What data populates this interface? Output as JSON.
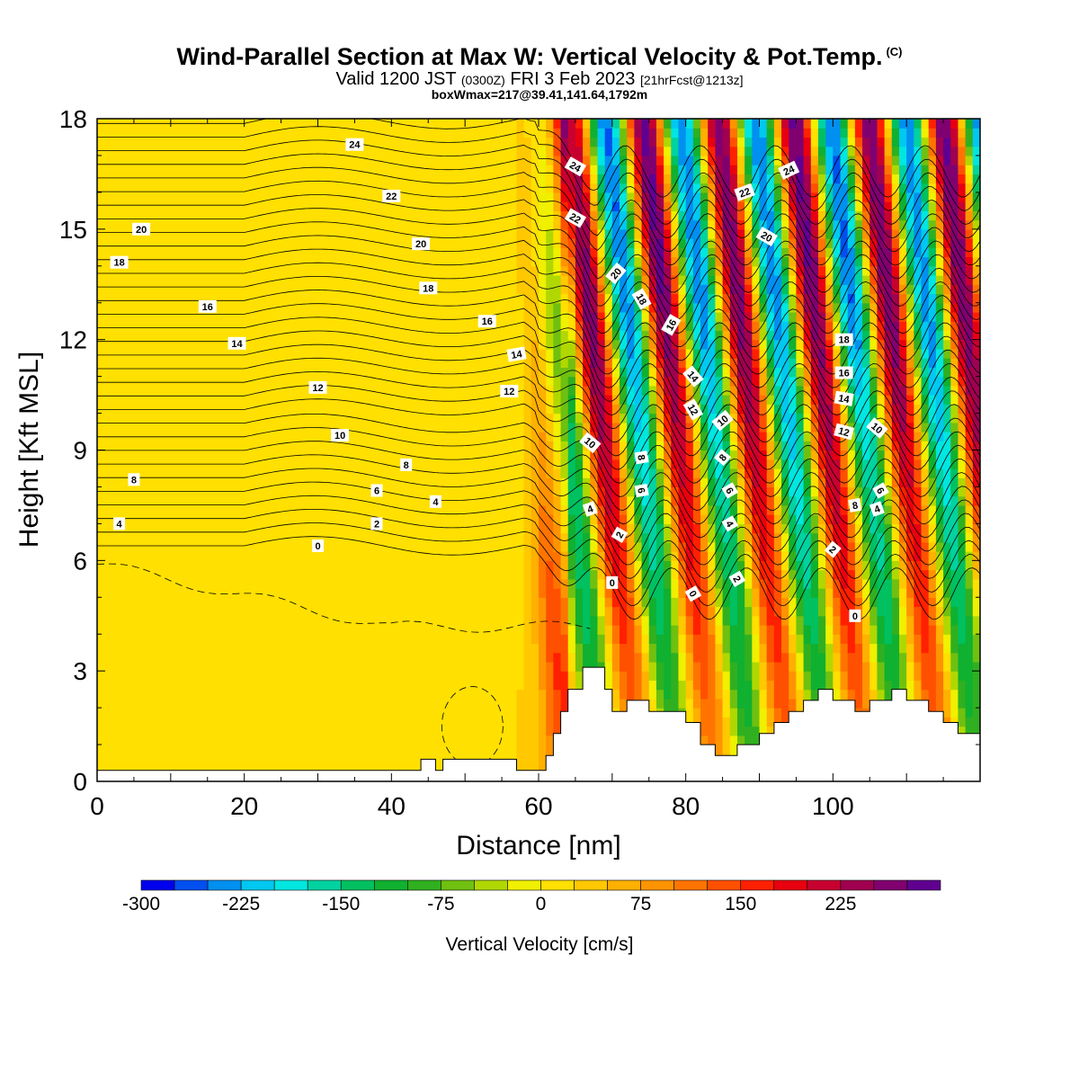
{
  "title": {
    "main": "Wind-Parallel Section at Max W: Vertical Velocity & Pot.Temp.",
    "copyright": "(C)",
    "valid_prefix": "Valid 1200 JST",
    "valid_zulu": "(0300Z)",
    "valid_date": "FRI 3 Feb 2023",
    "valid_forecast": "[21hrFcst@1213z]",
    "box_info": "boxWmax=217@39.41,141.64,1792m"
  },
  "chart_data": {
    "type": "heatmap",
    "xlabel": "Distance [nm]",
    "ylabel": "Height [Kft MSL]",
    "xlim": [
      0,
      120
    ],
    "ylim": [
      0,
      18
    ],
    "x_ticks": [
      0,
      20,
      40,
      60,
      80,
      100
    ],
    "y_ticks": [
      0,
      3,
      6,
      9,
      12,
      15,
      18
    ],
    "colorbar": {
      "title": "Vertical Velocity [cm/s]",
      "labels": [
        -300,
        -225,
        -150,
        -75,
        0,
        75,
        150,
        225
      ],
      "min": -300,
      "max": 275,
      "step": 25,
      "colors": [
        "#0000ee",
        "#0050f0",
        "#0090f0",
        "#00c8f0",
        "#00e6e0",
        "#00d2a0",
        "#00c060",
        "#10b030",
        "#30b020",
        "#70c010",
        "#b0d800",
        "#f0f000",
        "#ffe000",
        "#ffc800",
        "#ffb000",
        "#ff9400",
        "#ff7400",
        "#ff5000",
        "#ff2000",
        "#e80010",
        "#c80030",
        "#a00050",
        "#800070",
        "#600090"
      ]
    },
    "terrain": [
      [
        0,
        0.3
      ],
      [
        44,
        0.3
      ],
      [
        44,
        0.6
      ],
      [
        46,
        0.6
      ],
      [
        46,
        0.3
      ],
      [
        47,
        0.3
      ],
      [
        47,
        0.6
      ],
      [
        57,
        0.6
      ],
      [
        57,
        0.3
      ],
      [
        61,
        0.3
      ],
      [
        61,
        0.7
      ],
      [
        62,
        0.7
      ],
      [
        62,
        1.3
      ],
      [
        63,
        1.3
      ],
      [
        63,
        1.9
      ],
      [
        64,
        1.9
      ],
      [
        64,
        2.5
      ],
      [
        66,
        2.5
      ],
      [
        66,
        3.1
      ],
      [
        69,
        3.1
      ],
      [
        69,
        2.5
      ],
      [
        70,
        2.5
      ],
      [
        70,
        1.9
      ],
      [
        72,
        1.9
      ],
      [
        72,
        2.2
      ],
      [
        75,
        2.2
      ],
      [
        75,
        1.9
      ],
      [
        80,
        1.9
      ],
      [
        80,
        1.6
      ],
      [
        82,
        1.6
      ],
      [
        82,
        1.0
      ],
      [
        84,
        1.0
      ],
      [
        84,
        0.7
      ],
      [
        87,
        0.7
      ],
      [
        87,
        1.0
      ],
      [
        90,
        1.0
      ],
      [
        90,
        1.3
      ],
      [
        92,
        1.3
      ],
      [
        92,
        1.6
      ],
      [
        94,
        1.6
      ],
      [
        94,
        1.9
      ],
      [
        96,
        1.9
      ],
      [
        96,
        2.2
      ],
      [
        98,
        2.2
      ],
      [
        98,
        2.5
      ],
      [
        100,
        2.5
      ],
      [
        100,
        2.2
      ],
      [
        103,
        2.2
      ],
      [
        103,
        1.9
      ],
      [
        105,
        1.9
      ],
      [
        105,
        2.2
      ],
      [
        108,
        2.2
      ],
      [
        108,
        2.5
      ],
      [
        110,
        2.5
      ],
      [
        110,
        2.2
      ],
      [
        113,
        2.2
      ],
      [
        113,
        1.9
      ],
      [
        115,
        1.9
      ],
      [
        115,
        1.6
      ],
      [
        117,
        1.6
      ],
      [
        117,
        1.3
      ],
      [
        120,
        1.3
      ]
    ],
    "theta_levels": [
      0,
      2,
      4,
      6,
      8,
      10,
      12,
      14,
      16,
      18,
      20,
      22,
      24
    ],
    "contour_labels": [
      {
        "v": "24",
        "x": 35,
        "y": 17.3
      },
      {
        "v": "24",
        "x": 65,
        "y": 16.7,
        "r": 30
      },
      {
        "v": "24",
        "x": 94,
        "y": 16.6,
        "r": -25
      },
      {
        "v": "22",
        "x": 40,
        "y": 15.9
      },
      {
        "v": "22",
        "x": 65,
        "y": 15.3,
        "r": 30
      },
      {
        "v": "22",
        "x": 88,
        "y": 16.0,
        "r": -20
      },
      {
        "v": "20",
        "x": 6,
        "y": 15.0
      },
      {
        "v": "20",
        "x": 44,
        "y": 14.6
      },
      {
        "v": "20",
        "x": 70.5,
        "y": 13.8,
        "r": -50
      },
      {
        "v": "20",
        "x": 91,
        "y": 14.8,
        "r": 30
      },
      {
        "v": "18",
        "x": 3,
        "y": 14.1
      },
      {
        "v": "18",
        "x": 45,
        "y": 13.4
      },
      {
        "v": "18",
        "x": 74,
        "y": 13.1,
        "r": 60
      },
      {
        "v": "18",
        "x": 101.5,
        "y": 12.0
      },
      {
        "v": "16",
        "x": 15,
        "y": 12.9
      },
      {
        "v": "16",
        "x": 53,
        "y": 12.5
      },
      {
        "v": "16",
        "x": 78,
        "y": 12.4,
        "r": -60
      },
      {
        "v": "16",
        "x": 101.5,
        "y": 11.1
      },
      {
        "v": "14",
        "x": 19,
        "y": 11.9
      },
      {
        "v": "14",
        "x": 57,
        "y": 11.6,
        "r": -10
      },
      {
        "v": "14",
        "x": 81,
        "y": 11.0,
        "r": 50
      },
      {
        "v": "14",
        "x": 101.5,
        "y": 10.4,
        "r": 10
      },
      {
        "v": "12",
        "x": 30,
        "y": 10.7
      },
      {
        "v": "12",
        "x": 56,
        "y": 10.6
      },
      {
        "v": "12",
        "x": 81,
        "y": 10.1,
        "r": 60
      },
      {
        "v": "12",
        "x": 101.5,
        "y": 9.5,
        "r": 15
      },
      {
        "v": "10",
        "x": 33,
        "y": 9.4
      },
      {
        "v": "10",
        "x": 67,
        "y": 9.2,
        "r": 40
      },
      {
        "v": "10",
        "x": 85,
        "y": 9.8,
        "r": -40
      },
      {
        "v": "10",
        "x": 106,
        "y": 9.6,
        "r": 40
      },
      {
        "v": "8",
        "x": 5,
        "y": 8.2
      },
      {
        "v": "8",
        "x": 42,
        "y": 8.6
      },
      {
        "v": "8",
        "x": 74,
        "y": 8.8,
        "r": 80
      },
      {
        "v": "8",
        "x": 85,
        "y": 8.8,
        "r": -50
      },
      {
        "v": "8",
        "x": 103,
        "y": 7.5,
        "r": -10
      },
      {
        "v": "6",
        "x": 38,
        "y": 7.9
      },
      {
        "v": "6",
        "x": 74,
        "y": 7.9,
        "r": 80
      },
      {
        "v": "6",
        "x": 86,
        "y": 7.9,
        "r": 60
      },
      {
        "v": "6",
        "x": 106.5,
        "y": 7.9,
        "r": 60
      },
      {
        "v": "4",
        "x": 3,
        "y": 7.0
      },
      {
        "v": "4",
        "x": 46,
        "y": 7.6
      },
      {
        "v": "4",
        "x": 67,
        "y": 7.4,
        "r": -20
      },
      {
        "v": "4",
        "x": 86,
        "y": 7.0,
        "r": 60
      },
      {
        "v": "4",
        "x": 106,
        "y": 7.4,
        "r": -20
      },
      {
        "v": "2",
        "x": 38,
        "y": 7.0
      },
      {
        "v": "2",
        "x": 71,
        "y": 6.7,
        "r": -60
      },
      {
        "v": "2",
        "x": 87,
        "y": 5.5,
        "r": 60
      },
      {
        "v": "2",
        "x": 100,
        "y": 6.3,
        "r": 40
      },
      {
        "v": "0",
        "x": 30,
        "y": 6.4
      },
      {
        "v": "0",
        "x": 70,
        "y": 5.4
      },
      {
        "v": "0",
        "x": 81,
        "y": 5.1,
        "r": 60
      },
      {
        "v": "0",
        "x": 103,
        "y": 4.5
      }
    ]
  }
}
